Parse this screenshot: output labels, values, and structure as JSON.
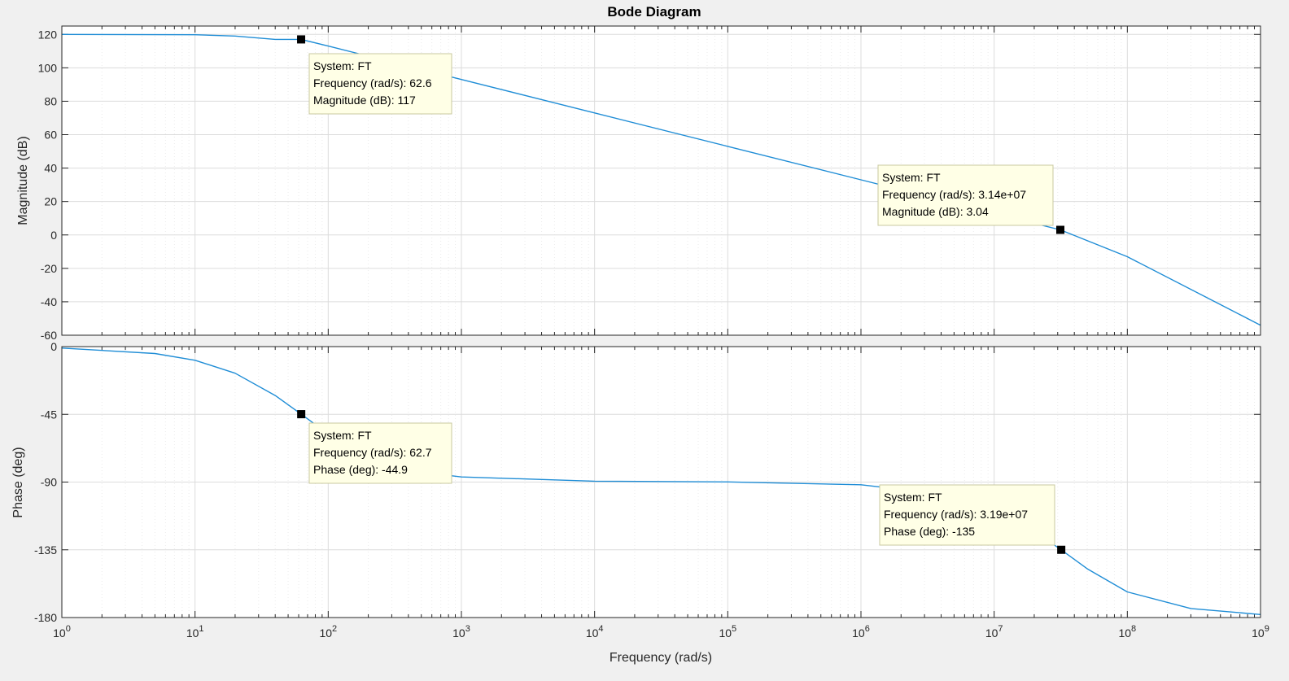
{
  "colors": {
    "line": "#1f8dd6",
    "grid_major": "#dcdcdc",
    "grid_minor": "#ebebeb",
    "tooltip_bg": "#ffffe6",
    "tooltip_border": "#c8c8a0",
    "axes_bg": "#ffffff"
  },
  "chart_data": {
    "type": "line",
    "title": "Bode Diagram",
    "xlabel": "Frequency  (rad/s)",
    "x_scale": "log",
    "xlim": [
      1,
      1000000000
    ],
    "x_tick_bases": [
      "10",
      "10",
      "10",
      "10",
      "10",
      "10",
      "10",
      "10",
      "10",
      "10"
    ],
    "x_tick_exponents": [
      "0",
      "1",
      "2",
      "3",
      "4",
      "5",
      "6",
      "7",
      "8",
      "9"
    ],
    "grid": true,
    "legend": "none",
    "series_label": "FT",
    "magnitude": {
      "ylabel": "Magnitude (dB)",
      "ylim": [
        -60,
        125
      ],
      "y_ticks": [
        "120",
        "100",
        "80",
        "60",
        "40",
        "20",
        "0",
        "-20",
        "-40",
        "-60"
      ],
      "x": [
        1,
        10,
        20,
        40,
        62.6,
        100,
        200,
        1000,
        10000,
        100000,
        1000000,
        10000000,
        31400000,
        100000000,
        1000000000
      ],
      "y": [
        120,
        119.8,
        119.0,
        117.0,
        117,
        113,
        107,
        93,
        73,
        53,
        33,
        13,
        3.04,
        -13,
        -54
      ]
    },
    "phase": {
      "ylabel": "Phase (deg)",
      "ylim": [
        -180,
        0
      ],
      "y_ticks": [
        "0",
        "-45",
        "-90",
        "-135",
        "-180"
      ],
      "x": [
        1,
        5,
        10,
        20,
        40,
        62.7,
        100,
        200,
        500,
        1000,
        10000,
        100000,
        1000000,
        5000000,
        10000000,
        20000000,
        31900000,
        50000000,
        100000000,
        300000000,
        1000000000
      ],
      "y": [
        -1,
        -4.6,
        -9.1,
        -17.7,
        -32.5,
        -44.9,
        -58,
        -72.7,
        -83.4,
        -86.6,
        -89.4,
        -89.9,
        -91.8,
        -98.9,
        -107.6,
        -122.5,
        -135,
        -147.6,
        -163,
        -174,
        -178
      ]
    },
    "data_tips": [
      {
        "panel": "magnitude",
        "x": 62.6,
        "y": 117,
        "lines": [
          "System: FT",
          "Frequency (rad/s): 62.6",
          "Magnitude (dB): 117"
        ]
      },
      {
        "panel": "magnitude",
        "x": 31400000,
        "y": 3.04,
        "lines": [
          "System: FT",
          "Frequency (rad/s): 3.14e+07",
          "Magnitude (dB): 3.04"
        ]
      },
      {
        "panel": "phase",
        "x": 62.7,
        "y": -44.9,
        "lines": [
          "System: FT",
          "Frequency (rad/s): 62.7",
          "Phase (deg): -44.9"
        ]
      },
      {
        "panel": "phase",
        "x": 31900000,
        "y": -135,
        "lines": [
          "System: FT",
          "Frequency (rad/s): 3.19e+07",
          "Phase (deg): -135"
        ]
      }
    ]
  }
}
